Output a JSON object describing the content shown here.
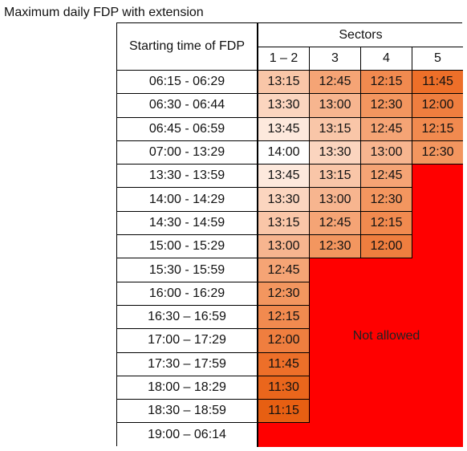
{
  "caption": "Maximum daily FDP with extension",
  "header": {
    "time_col": "Starting time of FDP",
    "sectors": "Sectors",
    "columns": [
      "1 – 2",
      "3",
      "4",
      "5"
    ]
  },
  "rows": [
    {
      "time": "06:15 - 06:29",
      "values": [
        "13:15",
        "12:45",
        "12:15",
        "11:45"
      ]
    },
    {
      "time": "06:30 - 06:44",
      "values": [
        "13:30",
        "13:00",
        "12:30",
        "12:00"
      ]
    },
    {
      "time": "06:45 - 06:59",
      "values": [
        "13:45",
        "13:15",
        "12:45",
        "12:15"
      ]
    },
    {
      "time": "07:00 - 13:29",
      "values": [
        "14:00",
        "13:30",
        "13:00",
        "12:30"
      ]
    },
    {
      "time": "13:30 - 13:59",
      "values": [
        "13:45",
        "13:15",
        "12:45",
        null
      ]
    },
    {
      "time": "14:00 - 14:29",
      "values": [
        "13:30",
        "13:00",
        "12:30",
        null
      ]
    },
    {
      "time": "14:30 - 14:59",
      "values": [
        "13:15",
        "12:45",
        "12:15",
        null
      ]
    },
    {
      "time": "15:00 - 15:29",
      "values": [
        "13:00",
        "12:30",
        "12:00",
        null
      ]
    },
    {
      "time": "15:30 - 15:59",
      "values": [
        "12:45",
        null,
        null,
        null
      ]
    },
    {
      "time": "16:00 - 16:29",
      "values": [
        "12:30",
        null,
        null,
        null
      ]
    },
    {
      "time": "16:30 – 16:59",
      "values": [
        "12:15",
        null,
        null,
        null
      ]
    },
    {
      "time": "17:00 – 17:29",
      "values": [
        "12:00",
        null,
        null,
        null
      ]
    },
    {
      "time": "17:30 – 17:59",
      "values": [
        "11:45",
        null,
        null,
        null
      ]
    },
    {
      "time": "18:00 – 18:29",
      "values": [
        "11:30",
        null,
        null,
        null
      ]
    },
    {
      "time": "18:30 – 18:59",
      "values": [
        "11:15",
        null,
        null,
        null
      ]
    },
    {
      "time": "19:00 – 06:14",
      "values": [
        null,
        null,
        null,
        null
      ]
    }
  ],
  "not_allowed": "Not allowed",
  "colors": {
    "14:00": "#ffffff",
    "13:45": "#fde9dd",
    "13:30": "#fbd5bf",
    "13:15": "#f9c6a8",
    "13:00": "#f7b58f",
    "12:45": "#f5a475",
    "12:30": "#f3965f",
    "12:15": "#f18a4f",
    "12:00": "#ef7e3f",
    "11:45": "#ed6f29",
    "11:30": "#ea661c",
    "11:15": "#e75f12",
    "not_allowed": "#ff0000"
  }
}
